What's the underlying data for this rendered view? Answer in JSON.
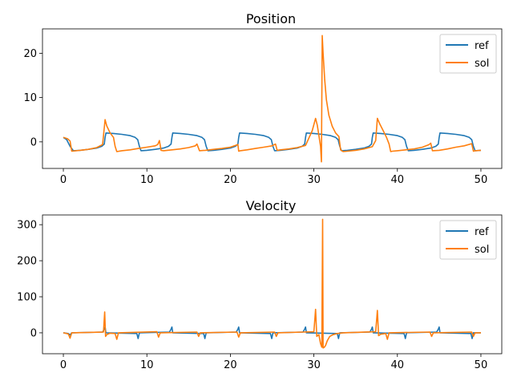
{
  "chart_data": [
    {
      "type": "line",
      "title": "Position",
      "xlabel": "",
      "ylabel": "",
      "xlim": [
        -2.5,
        52.5
      ],
      "ylim": [
        -6,
        25.5
      ],
      "xticks": [
        0,
        10,
        20,
        30,
        40,
        50
      ],
      "yticks": [
        0,
        10,
        20
      ],
      "grid": false,
      "legend_placement": "top-right",
      "series": [
        {
          "name": "ref",
          "color": "#1f77b4",
          "x": [
            0,
            0.4,
            0.8,
            1.2,
            2.0,
            3.0,
            4.0,
            4.6,
            4.9,
            5.0,
            5.1,
            6.0,
            7.0,
            8.0,
            8.6,
            8.9,
            9.1,
            9.3,
            10.0,
            11.0,
            12.0,
            12.6,
            12.9,
            13.0,
            13.1,
            14.0,
            15.0,
            16.0,
            16.6,
            16.9,
            17.1,
            17.3,
            18.0,
            19.0,
            20.0,
            20.6,
            20.9,
            21.0,
            21.1,
            22.0,
            23.0,
            24.0,
            24.6,
            24.9,
            25.1,
            25.3,
            26.0,
            27.0,
            28.0,
            28.6,
            28.9,
            29.0,
            29.1,
            30.0,
            31.0,
            32.0,
            32.6,
            32.9,
            33.1,
            33.3,
            34.0,
            35.0,
            36.0,
            36.6,
            36.9,
            37.0,
            37.1,
            38.0,
            39.0,
            40.0,
            40.6,
            40.9,
            41.1,
            41.3,
            42.0,
            43.0,
            44.0,
            44.6,
            44.9,
            45.0,
            45.1,
            46.0,
            47.0,
            48.0,
            48.6,
            48.9,
            49.1,
            49.3,
            50.0
          ],
          "y": [
            1.0,
            0.5,
            -1.0,
            -2.0,
            -1.9,
            -1.7,
            -1.4,
            -1.0,
            -0.5,
            1.0,
            2.0,
            1.9,
            1.7,
            1.4,
            1.0,
            0.5,
            -1.0,
            -2.0,
            -1.9,
            -1.7,
            -1.4,
            -1.0,
            -0.5,
            1.0,
            2.0,
            1.9,
            1.7,
            1.4,
            1.0,
            0.5,
            -1.0,
            -2.0,
            -1.9,
            -1.7,
            -1.4,
            -1.0,
            -0.5,
            1.0,
            2.0,
            1.9,
            1.7,
            1.4,
            1.0,
            0.5,
            -1.0,
            -2.0,
            -1.9,
            -1.7,
            -1.4,
            -1.0,
            -0.5,
            1.0,
            2.0,
            1.9,
            1.7,
            1.4,
            1.0,
            0.5,
            -1.0,
            -2.0,
            -1.9,
            -1.7,
            -1.4,
            -1.0,
            -0.5,
            1.0,
            2.0,
            1.9,
            1.7,
            1.4,
            1.0,
            0.5,
            -1.0,
            -2.0,
            -1.9,
            -1.7,
            -1.4,
            -1.0,
            -0.5,
            1.0,
            2.0,
            1.9,
            1.7,
            1.4,
            1.0,
            0.5,
            -1.0,
            -2.0,
            -1.9
          ]
        },
        {
          "name": "sol",
          "color": "#ff7f0e",
          "x": [
            0,
            0.5,
            0.8,
            1.0,
            2.0,
            3.0,
            4.0,
            4.7,
            5.0,
            5.2,
            5.6,
            6.0,
            6.2,
            6.4,
            7.0,
            8.0,
            9.0,
            10.0,
            11.0,
            11.3,
            11.5,
            11.7,
            12.0,
            13.0,
            14.0,
            15.0,
            15.8,
            16.0,
            16.3,
            17.0,
            18.0,
            19.0,
            20.0,
            20.9,
            21.0,
            21.2,
            22.0,
            23.0,
            24.0,
            25.0,
            25.4,
            25.6,
            26.0,
            27.0,
            28.0,
            29.0,
            29.8,
            30.2,
            30.4,
            30.6,
            30.8,
            30.9,
            31.0,
            31.1,
            31.3,
            31.5,
            31.8,
            32.2,
            32.6,
            33.0,
            33.2,
            33.5,
            34.0,
            35.0,
            36.0,
            37.0,
            37.4,
            37.6,
            37.9,
            38.3,
            38.7,
            39.0,
            39.2,
            39.4,
            40.0,
            41.0,
            42.0,
            43.0,
            43.8,
            44.0,
            44.2,
            45.0,
            46.0,
            47.0,
            48.0,
            48.9,
            49.1,
            49.3,
            50.0
          ],
          "y": [
            1.0,
            0.7,
            0.2,
            -2.1,
            -1.9,
            -1.7,
            -1.3,
            -0.6,
            5.0,
            3.6,
            2.0,
            1.0,
            -1.0,
            -2.2,
            -2.0,
            -1.8,
            -1.5,
            -1.2,
            -0.9,
            -0.6,
            0.3,
            -1.9,
            -2.0,
            -1.8,
            -1.6,
            -1.3,
            -0.9,
            -0.5,
            -2.0,
            -1.9,
            -1.7,
            -1.5,
            -1.2,
            -0.6,
            -2.1,
            -2.0,
            -1.8,
            -1.5,
            -1.2,
            -0.9,
            -0.5,
            -1.9,
            -1.8,
            -1.6,
            -1.3,
            -0.8,
            2.5,
            5.3,
            3.8,
            1.5,
            -1.0,
            -4.5,
            24.0,
            20.0,
            14.0,
            9.5,
            6.0,
            3.5,
            2.0,
            1.2,
            -1.8,
            -2.2,
            -2.1,
            -1.9,
            -1.6,
            -1.1,
            0.3,
            5.3,
            4.0,
            2.5,
            1.0,
            -0.5,
            -2.2,
            -2.1,
            -2.0,
            -1.8,
            -1.6,
            -1.2,
            -0.6,
            -0.3,
            -2.0,
            -1.9,
            -1.6,
            -1.2,
            -0.9,
            -0.4,
            -2.1,
            -2.0,
            -1.9
          ]
        }
      ]
    },
    {
      "type": "line",
      "title": "Velocity",
      "xlabel": "",
      "ylabel": "",
      "xlim": [
        -2.5,
        52.5
      ],
      "ylim": [
        -58,
        327
      ],
      "xticks": [
        0,
        10,
        20,
        30,
        40,
        50
      ],
      "yticks": [
        0,
        100,
        200,
        300
      ],
      "grid": false,
      "legend_placement": "top-right",
      "series": [
        {
          "name": "ref",
          "color": "#1f77b4",
          "x": [
            0,
            0.6,
            0.8,
            1.0,
            4.7,
            4.9,
            5.0,
            5.1,
            8.8,
            8.95,
            9.1,
            12.7,
            12.9,
            13.0,
            13.1,
            16.8,
            16.95,
            17.1,
            20.7,
            20.9,
            21.0,
            21.1,
            24.8,
            24.95,
            25.1,
            28.7,
            28.9,
            29.0,
            29.1,
            32.8,
            32.95,
            33.1,
            36.7,
            36.9,
            37.0,
            37.1,
            40.8,
            40.95,
            41.1,
            44.7,
            44.9,
            45.0,
            45.1,
            48.8,
            48.95,
            49.1,
            50.0
          ],
          "y": [
            0,
            -2,
            -6,
            0,
            2,
            10,
            16,
            0,
            -2,
            -16,
            0,
            2,
            10,
            16,
            0,
            -2,
            -16,
            0,
            2,
            10,
            16,
            0,
            -2,
            -16,
            0,
            2,
            10,
            16,
            0,
            -2,
            -16,
            0,
            2,
            10,
            16,
            0,
            -2,
            -16,
            0,
            2,
            10,
            16,
            0,
            -2,
            -16,
            0,
            0
          ]
        },
        {
          "name": "sol",
          "color": "#ff7f0e",
          "x": [
            0,
            0.6,
            0.8,
            1.0,
            4.8,
            4.95,
            5.05,
            5.2,
            5.6,
            6.2,
            6.4,
            6.6,
            11.2,
            11.4,
            11.6,
            16.0,
            16.2,
            16.4,
            20.8,
            21.0,
            21.2,
            25.3,
            25.5,
            25.7,
            30.0,
            30.2,
            30.35,
            30.6,
            30.8,
            30.95,
            31.05,
            31.1,
            31.25,
            31.4,
            31.6,
            31.9,
            32.3,
            32.8,
            33.5,
            37.4,
            37.6,
            37.75,
            38.0,
            38.6,
            38.8,
            39.0,
            43.9,
            44.1,
            44.3,
            48.9,
            49.1,
            49.3,
            50.0
          ],
          "y": [
            0,
            -3,
            -15,
            0,
            2,
            58,
            -10,
            -5,
            -1,
            -2,
            -18,
            0,
            3,
            -12,
            0,
            2,
            -10,
            0,
            2,
            -12,
            0,
            2,
            -10,
            0,
            3,
            65,
            -10,
            -5,
            -30,
            -40,
            315,
            -42,
            -40,
            -35,
            -22,
            -10,
            -5,
            -2,
            0,
            3,
            62,
            -8,
            -4,
            -2,
            -18,
            0,
            2,
            -10,
            0,
            2,
            -10,
            0,
            0
          ]
        }
      ]
    }
  ]
}
